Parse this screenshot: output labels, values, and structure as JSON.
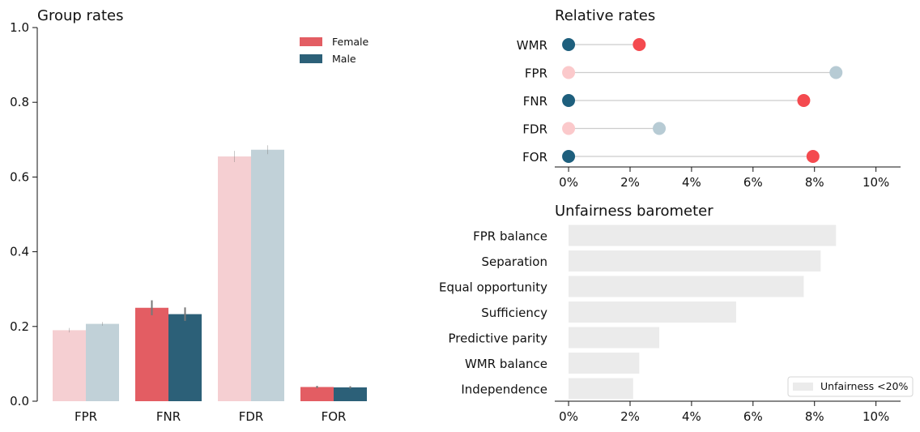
{
  "colors": {
    "female": "#e35d63",
    "female_light": "#f5cfd2",
    "male": "#2c6078",
    "male_light": "#c1d1d8",
    "relative_red": "#f44a4f",
    "relative_red_light": "#fbc9cb",
    "relative_blue": "#1e5f7d",
    "relative_blue_light": "#b7cbd4",
    "connector": "#cccccc",
    "barometer_bar": "#ebebeb",
    "error_bar": "#777777"
  },
  "chart_data": [
    {
      "type": "bar",
      "title": "Group rates",
      "xlabel": "",
      "ylabel": "",
      "categories": [
        "FPR",
        "FNR",
        "FDR",
        "FOR"
      ],
      "series": [
        {
          "name": "Female",
          "values": [
            0.19,
            0.25,
            0.655,
            0.038
          ],
          "error": [
            0.006,
            0.02,
            0.015,
            0.003
          ],
          "highlight": [
            false,
            true,
            false,
            true
          ]
        },
        {
          "name": "Male",
          "values": [
            0.207,
            0.233,
            0.673,
            0.037
          ],
          "error": [
            0.005,
            0.018,
            0.012,
            0.003
          ],
          "highlight": [
            false,
            true,
            false,
            true
          ]
        }
      ],
      "ylim": [
        0,
        1.0
      ],
      "yticks": [
        "0.0",
        "0.2",
        "0.4",
        "0.6",
        "0.8",
        "1.0"
      ],
      "ytick_values": [
        0,
        0.2,
        0.4,
        0.6,
        0.8,
        1.0
      ],
      "legend": {
        "placement": "top-right",
        "entries": [
          "Female",
          "Male"
        ]
      },
      "grid": false
    },
    {
      "type": "scatter",
      "title": "Relative rates",
      "categories": [
        "WMR",
        "FPR",
        "FNR",
        "FDR",
        "FOR"
      ],
      "low": [
        0,
        0,
        0,
        0,
        0
      ],
      "high": [
        2.3,
        8.7,
        7.65,
        2.95,
        7.95
      ],
      "low_group": [
        "male",
        "female",
        "male",
        "female",
        "male"
      ],
      "high_group": [
        "female",
        "male",
        "female",
        "male",
        "female"
      ],
      "highlight": [
        true,
        false,
        true,
        false,
        true
      ],
      "xlim": [
        -0.45,
        10.8
      ],
      "xticks": [
        "0%",
        "2%",
        "4%",
        "6%",
        "8%",
        "10%"
      ],
      "xtick_values": [
        0,
        2,
        4,
        6,
        8,
        10
      ],
      "grid": false
    },
    {
      "type": "bar",
      "orientation": "horizontal",
      "title": "Unfairness barometer",
      "categories": [
        "FPR balance",
        "Separation",
        "Equal opportunity",
        "Sufficiency",
        "Predictive parity",
        "WMR balance",
        "Independence"
      ],
      "values": [
        8.7,
        8.2,
        7.65,
        5.45,
        2.95,
        2.3,
        2.1
      ],
      "xlim": [
        -0.45,
        10.8
      ],
      "xticks": [
        "0%",
        "2%",
        "4%",
        "6%",
        "8%",
        "10%"
      ],
      "xtick_values": [
        0,
        2,
        4,
        6,
        8,
        10
      ],
      "legend": {
        "placement": "bottom-right",
        "entries": [
          "Unfairness <20%"
        ]
      },
      "grid": false
    }
  ]
}
